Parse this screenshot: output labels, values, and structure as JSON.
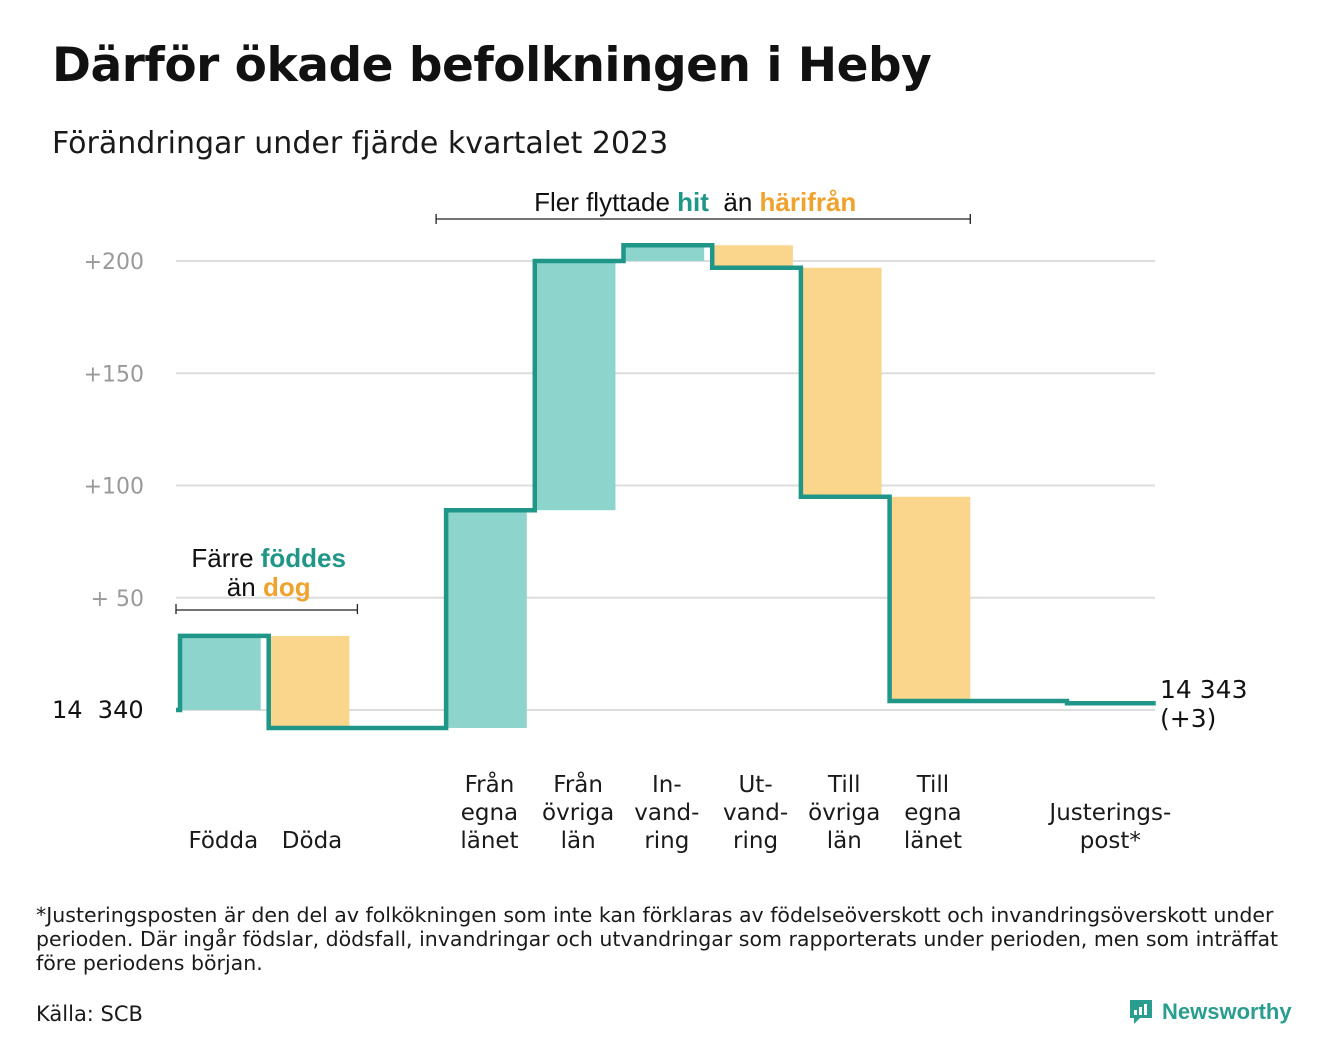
{
  "title": "Därför ökade befolkningen i Heby",
  "subtitle": "Förändringar under fjärde kvartalet 2023",
  "footnote": "*Justeringsposten är den del av folkökningen som inte kan förklaras av födelseöverskott och invandringsöverskott under perioden. Där ingår födslar, dödsfall, invandringar och utvandringar som rapporterats under perioden, men som inträffat före periodens början.",
  "source": "Källa: SCB",
  "logo_text": "Newsworthy",
  "colors": {
    "increase": "#8dd5cc",
    "decrease": "#fad58c",
    "line": "#1f9688",
    "accent_teal": "#1f9688",
    "accent_orange": "#f0a22e",
    "grid": "#dddddd",
    "axis_label": "#999999"
  },
  "chart_data": {
    "type": "waterfall",
    "start_label": "14  340",
    "end_label_line1": "14 343",
    "end_label_line2": "(+3)",
    "ylim": [
      -10,
      215
    ],
    "yticks": [
      {
        "value": 50,
        "label": "+  50"
      },
      {
        "value": 100,
        "label": "+100"
      },
      {
        "value": 150,
        "label": "+150"
      },
      {
        "value": 200,
        "label": "+200"
      }
    ],
    "grid": true,
    "steps": [
      {
        "label_lines": [
          "Födda"
        ],
        "from": 0,
        "to": 33,
        "kind": "increase"
      },
      {
        "label_lines": [
          "Döda"
        ],
        "from": 33,
        "to": -8,
        "kind": "decrease"
      },
      {
        "label_lines": [
          ""
        ],
        "from": -8,
        "to": -8,
        "kind": "none"
      },
      {
        "label_lines": [
          "Från",
          "egna",
          "länet"
        ],
        "from": -8,
        "to": 89,
        "kind": "increase"
      },
      {
        "label_lines": [
          "Från",
          "övriga",
          "län"
        ],
        "from": 89,
        "to": 200,
        "kind": "increase"
      },
      {
        "label_lines": [
          "In-",
          "vand-",
          "ring"
        ],
        "from": 200,
        "to": 207,
        "kind": "increase"
      },
      {
        "label_lines": [
          "Ut-",
          "vand-",
          "ring"
        ],
        "from": 207,
        "to": 197,
        "kind": "decrease"
      },
      {
        "label_lines": [
          "Till",
          "övriga",
          "län"
        ],
        "from": 197,
        "to": 95,
        "kind": "decrease"
      },
      {
        "label_lines": [
          "Till",
          "egna",
          "länet"
        ],
        "from": 95,
        "to": 4,
        "kind": "decrease"
      },
      {
        "label_lines": [
          ""
        ],
        "from": 4,
        "to": 4,
        "kind": "none"
      },
      {
        "label_lines": [
          "Justerings-",
          "post*"
        ],
        "from": 4,
        "to": 3,
        "kind": "decrease"
      }
    ],
    "annotations": [
      {
        "line1": [
          {
            "text": "Färre ",
            "color": "#111111",
            "bold": false
          },
          {
            "text": "föddes",
            "color": "#1f9688",
            "bold": true
          }
        ],
        "line2": [
          {
            "text": "än ",
            "color": "#111111",
            "bold": false
          },
          {
            "text": "dog",
            "color": "#f0a22e",
            "bold": true
          }
        ],
        "span": [
          0,
          2
        ]
      },
      {
        "line1": [
          {
            "text": "Fler flyttade ",
            "color": "#111111",
            "bold": false
          },
          {
            "text": "hit",
            "color": "#1f9688",
            "bold": true
          },
          {
            "text": "  än ",
            "color": "#111111",
            "bold": false
          },
          {
            "text": "härifrån",
            "color": "#f0a22e",
            "bold": true
          }
        ],
        "line2": [],
        "span": [
          3,
          9
        ]
      }
    ]
  }
}
